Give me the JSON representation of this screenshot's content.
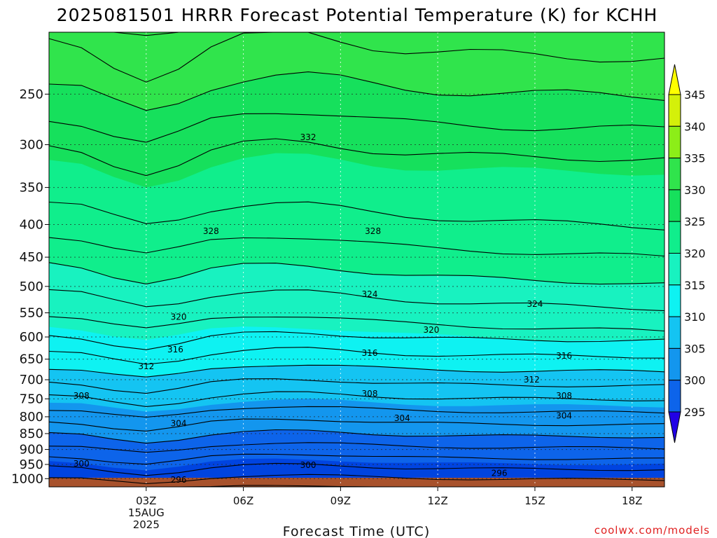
{
  "colors": {
    "fills": [
      "#2200e6",
      "#0044e0",
      "#0d64ea",
      "#1396ee",
      "#14c4f2",
      "#0ef2f2",
      "#18f2c0",
      "#10ee8c",
      "#16e05c",
      "#30e44c",
      "#8cee18",
      "#d4f00a",
      "#ffff00"
    ],
    "ground": "#a8522c",
    "credit": "#e02020"
  },
  "chart_data": {
    "type": "contour",
    "title": "2025081501 HRRR Forecast Potential Temperature (K) for KCHH",
    "xlabel": "Forecast Time (UTC)",
    "ylabel": "",
    "x_ticks": [
      {
        "label": "03Z",
        "sub": [
          "15AUG",
          "2025"
        ],
        "hour": 3
      },
      {
        "label": "06Z",
        "sub": [],
        "hour": 6
      },
      {
        "label": "09Z",
        "sub": [],
        "hour": 9
      },
      {
        "label": "12Z",
        "sub": [],
        "hour": 12
      },
      {
        "label": "15Z",
        "sub": [],
        "hour": 15
      },
      {
        "label": "18Z",
        "sub": [],
        "hour": 18
      }
    ],
    "xlim_hours": [
      0,
      19
    ],
    "y_scale": "log",
    "y_ticks": [
      "250",
      "300",
      "350",
      "400",
      "450",
      "500",
      "550",
      "600",
      "650",
      "700",
      "750",
      "800",
      "850",
      "900",
      "950",
      "1000"
    ],
    "ylim_hpa": [
      200,
      1030
    ],
    "colorbar": {
      "levels": [
        "345",
        "340",
        "335",
        "330",
        "325",
        "320",
        "315",
        "310",
        "305",
        "300",
        "295"
      ],
      "extend": "both"
    },
    "contour_interval_k": 2,
    "contour_labels": [
      {
        "text": "332",
        "hour": 8.0,
        "hpa": 292
      },
      {
        "text": "328",
        "hour": 5.0,
        "hpa": 410
      },
      {
        "text": "328",
        "hour": 10.0,
        "hpa": 410
      },
      {
        "text": "324",
        "hour": 9.9,
        "hpa": 514
      },
      {
        "text": "324",
        "hour": 15.0,
        "hpa": 533
      },
      {
        "text": "320",
        "hour": 4.0,
        "hpa": 558
      },
      {
        "text": "320",
        "hour": 11.8,
        "hpa": 585
      },
      {
        "text": "316",
        "hour": 3.9,
        "hpa": 628
      },
      {
        "text": "316",
        "hour": 9.9,
        "hpa": 636
      },
      {
        "text": "316",
        "hour": 15.9,
        "hpa": 642
      },
      {
        "text": "312",
        "hour": 3.0,
        "hpa": 667
      },
      {
        "text": "312",
        "hour": 14.9,
        "hpa": 700
      },
      {
        "text": "308",
        "hour": 1.0,
        "hpa": 742
      },
      {
        "text": "308",
        "hour": 9.9,
        "hpa": 736
      },
      {
        "text": "308",
        "hour": 15.9,
        "hpa": 742
      },
      {
        "text": "304",
        "hour": 4.0,
        "hpa": 820
      },
      {
        "text": "304",
        "hour": 10.9,
        "hpa": 804
      },
      {
        "text": "304",
        "hour": 15.9,
        "hpa": 797
      },
      {
        "text": "300",
        "hour": 1.0,
        "hpa": 948
      },
      {
        "text": "300",
        "hour": 8.0,
        "hpa": 952
      },
      {
        "text": "296",
        "hour": 4.0,
        "hpa": 1004
      },
      {
        "text": "296",
        "hour": 13.9,
        "hpa": 980
      }
    ]
  },
  "credit": "coolwx.com/models"
}
